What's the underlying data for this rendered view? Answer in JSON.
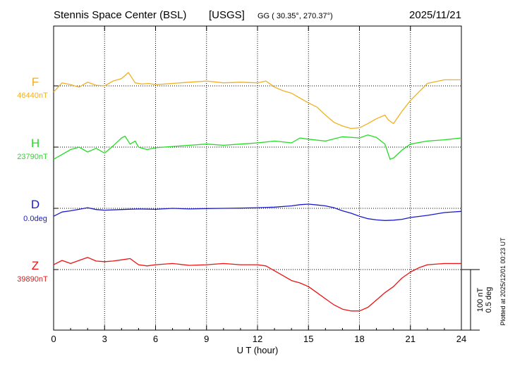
{
  "header": {
    "station": "Stennis Space Center (BSL)",
    "agency": "[USGS]",
    "coords": "GG ( 30.35°, 270.37°)",
    "date": "2025/11/21"
  },
  "footer": {
    "plotted_note": "Plotted at 2025/12/01 00:23 UT"
  },
  "scale_bar": {
    "label_nt": "100 nT",
    "label_deg": "0.5 deg"
  },
  "colors": {
    "F": "#f0b020",
    "H": "#22dd22",
    "D": "#1a1acc",
    "Z": "#ee1111",
    "axis": "#000000",
    "grid": "#000000"
  },
  "chart_data": {
    "type": "line",
    "title": "Stennis Space Center (BSL)  [USGS]",
    "xlabel": "U T (hour)",
    "xlim": [
      0,
      24
    ],
    "xticks": [
      0,
      3,
      6,
      9,
      12,
      15,
      18,
      21,
      24
    ],
    "xtick_labels": [
      "0",
      "3",
      "6",
      "9",
      "12",
      "15",
      "18",
      "21",
      "24"
    ],
    "grid": true,
    "scale": {
      "nT_per_division": 100,
      "deg_per_division": 0.5
    },
    "series": [
      {
        "name": "F",
        "baseline_label": "46440nT",
        "unit": "nT",
        "baseline": 46440,
        "x": [
          0,
          0.5,
          1,
          1.5,
          2,
          2.5,
          3,
          3.5,
          4,
          4.4,
          4.8,
          5.2,
          5.6,
          6,
          7,
          8,
          9,
          10,
          11,
          12,
          12.5,
          13,
          13.5,
          14,
          14.5,
          15,
          15.5,
          16,
          16.5,
          17,
          17.5,
          18,
          18.5,
          19,
          19.5,
          19.7,
          20,
          20.5,
          21,
          21.5,
          22,
          23,
          24
        ],
        "values": [
          46430,
          46445,
          46442,
          46438,
          46446,
          46441,
          46440,
          46448,
          46452,
          46462,
          46445,
          46443,
          46444,
          46442,
          46444,
          46446,
          46448,
          46445,
          46446,
          46445,
          46448,
          46438,
          46432,
          46428,
          46420,
          46412,
          46405,
          46392,
          46380,
          46374,
          46370,
          46371,
          46378,
          46386,
          46392,
          46384,
          46378,
          46398,
          46416,
          46430,
          46444,
          46450,
          46450
        ]
      },
      {
        "name": "H",
        "baseline_label": "23790nT",
        "unit": "nT",
        "baseline": 23790,
        "x": [
          0,
          0.5,
          1,
          1.5,
          2,
          2.5,
          3,
          3.5,
          4,
          4.2,
          4.5,
          4.8,
          5,
          5.5,
          6,
          7,
          8,
          9,
          10,
          11,
          12,
          13,
          14,
          14.5,
          15,
          16,
          17,
          18,
          18.5,
          19,
          19.5,
          19.8,
          20,
          20.5,
          21,
          22,
          23,
          24
        ],
        "values": [
          23770,
          23778,
          23786,
          23790,
          23782,
          23788,
          23780,
          23792,
          23805,
          23808,
          23795,
          23800,
          23790,
          23786,
          23789,
          23791,
          23793,
          23795,
          23793,
          23795,
          23797,
          23800,
          23797,
          23805,
          23803,
          23800,
          23807,
          23805,
          23810,
          23806,
          23795,
          23770,
          23772,
          23785,
          23795,
          23800,
          23802,
          23805
        ]
      },
      {
        "name": "D",
        "baseline_label": "0.0deg",
        "unit": "deg",
        "baseline": 0.0,
        "x": [
          0,
          0.5,
          1,
          1.5,
          2,
          2.5,
          3,
          4,
          5,
          6,
          7,
          8,
          9,
          10,
          11,
          12,
          13,
          14,
          14.5,
          15,
          15.5,
          16,
          16.5,
          17,
          17.5,
          18,
          18.5,
          19,
          19.5,
          20,
          20.5,
          21,
          22,
          23,
          24
        ],
        "values": [
          -0.065,
          -0.03,
          -0.02,
          -0.008,
          0.005,
          -0.01,
          -0.015,
          -0.01,
          -0.005,
          -0.008,
          0.0,
          -0.005,
          -0.002,
          0.0,
          0.002,
          0.005,
          0.01,
          0.02,
          0.03,
          0.035,
          0.028,
          0.02,
          0.005,
          -0.02,
          -0.04,
          -0.065,
          -0.085,
          -0.095,
          -0.1,
          -0.097,
          -0.09,
          -0.075,
          -0.058,
          -0.035,
          -0.025
        ]
      },
      {
        "name": "Z",
        "baseline_label": "39890nT",
        "unit": "nT",
        "baseline": 39890,
        "x": [
          0,
          0.5,
          1,
          1.5,
          2,
          2.5,
          3,
          3.5,
          4,
          4.5,
          5,
          5.5,
          6,
          7,
          8,
          9,
          10,
          11,
          12,
          12.5,
          13,
          13.5,
          14,
          14.5,
          15,
          15.5,
          16,
          16.5,
          17,
          17.5,
          18,
          18.5,
          19,
          19.5,
          20,
          20.5,
          21,
          21.5,
          22,
          23,
          24
        ],
        "values": [
          39898,
          39905,
          39900,
          39905,
          39910,
          39904,
          39903,
          39904,
          39906,
          39908,
          39898,
          39896,
          39898,
          39900,
          39897,
          39898,
          39900,
          39898,
          39898,
          39896,
          39888,
          39880,
          39872,
          39868,
          39862,
          39852,
          39842,
          39832,
          39825,
          39822,
          39822,
          39828,
          39840,
          39852,
          39862,
          39876,
          39886,
          39893,
          39898,
          39900,
          39900
        ]
      }
    ]
  }
}
